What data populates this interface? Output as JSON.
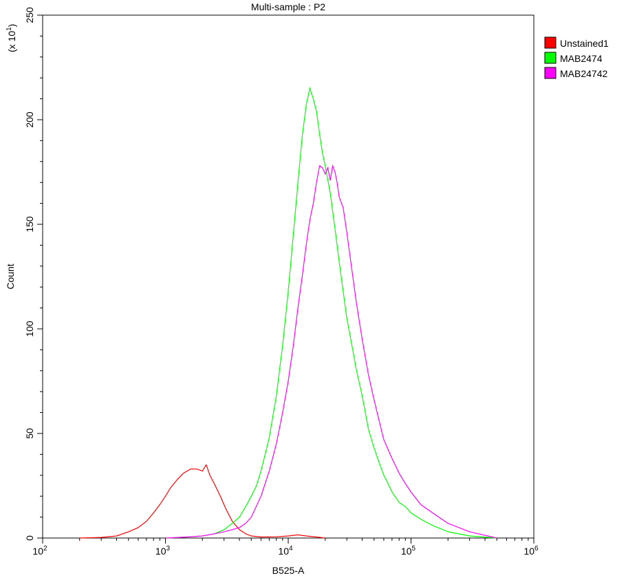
{
  "chart_data": {
    "type": "line",
    "title": "Multi-sample : P2",
    "xlabel": "B525-A",
    "ylabel": "Count",
    "y_multiplier_label": "(x 10",
    "y_multiplier_exp": "1",
    "y_multiplier_close": ")",
    "x_scale": "log",
    "xlim": [
      100,
      1000000
    ],
    "ylim": [
      0,
      250
    ],
    "x_ticks": [
      {
        "value": 100,
        "base": "10",
        "exp": "2"
      },
      {
        "value": 1000,
        "base": "10",
        "exp": "3"
      },
      {
        "value": 10000,
        "base": "10",
        "exp": "4"
      },
      {
        "value": 100000,
        "base": "10",
        "exp": "5"
      },
      {
        "value": 1000000,
        "base": "10",
        "exp": "6"
      }
    ],
    "y_ticks": [
      "0",
      "50",
      "100",
      "150",
      "200",
      "250"
    ],
    "grid": false,
    "legend_position": "top-right",
    "series": [
      {
        "name": "Unstained1",
        "color": "#ff0000",
        "points": [
          [
            200,
            0
          ],
          [
            300,
            0.3
          ],
          [
            400,
            1
          ],
          [
            500,
            3
          ],
          [
            600,
            5
          ],
          [
            700,
            8
          ],
          [
            800,
            12
          ],
          [
            900,
            16
          ],
          [
            1000,
            20
          ],
          [
            1100,
            24
          ],
          [
            1250,
            28
          ],
          [
            1400,
            31
          ],
          [
            1600,
            33
          ],
          [
            1800,
            33
          ],
          [
            2000,
            32
          ],
          [
            2150,
            35
          ],
          [
            2300,
            30
          ],
          [
            2500,
            26
          ],
          [
            2800,
            20
          ],
          [
            3100,
            14
          ],
          [
            3500,
            8
          ],
          [
            4000,
            4
          ],
          [
            4500,
            2
          ],
          [
            5000,
            1
          ],
          [
            6000,
            0.5
          ],
          [
            8000,
            0.6
          ],
          [
            10000,
            1
          ],
          [
            12000,
            1.5
          ],
          [
            14000,
            1
          ],
          [
            17000,
            0.5
          ],
          [
            20000,
            0
          ]
        ]
      },
      {
        "name": "MAB2474",
        "color": "#00ff00",
        "points": [
          [
            1000,
            0
          ],
          [
            1500,
            0.5
          ],
          [
            2000,
            1
          ],
          [
            2500,
            2
          ],
          [
            3000,
            4
          ],
          [
            3500,
            7
          ],
          [
            4000,
            10
          ],
          [
            4500,
            15
          ],
          [
            5000,
            20
          ],
          [
            5500,
            25
          ],
          [
            6000,
            32
          ],
          [
            7000,
            48
          ],
          [
            8000,
            68
          ],
          [
            9000,
            92
          ],
          [
            10000,
            118
          ],
          [
            11000,
            145
          ],
          [
            12000,
            170
          ],
          [
            13000,
            192
          ],
          [
            14000,
            207
          ],
          [
            15000,
            215
          ],
          [
            16000,
            210
          ],
          [
            17000,
            204
          ],
          [
            18000,
            193
          ],
          [
            19000,
            184
          ],
          [
            20000,
            178
          ],
          [
            22000,
            165
          ],
          [
            24000,
            148
          ],
          [
            26000,
            132
          ],
          [
            28000,
            118
          ],
          [
            30000,
            105
          ],
          [
            33000,
            92
          ],
          [
            36000,
            80
          ],
          [
            40000,
            68
          ],
          [
            45000,
            52
          ],
          [
            50000,
            43
          ],
          [
            55000,
            36
          ],
          [
            60000,
            30
          ],
          [
            65000,
            26
          ],
          [
            70000,
            22
          ],
          [
            80000,
            17
          ],
          [
            90000,
            15
          ],
          [
            100000,
            12
          ],
          [
            120000,
            9
          ],
          [
            150000,
            6
          ],
          [
            200000,
            3
          ],
          [
            300000,
            1
          ],
          [
            500000,
            0
          ]
        ]
      },
      {
        "name": "MAB24742",
        "color": "#ff00ff",
        "points": [
          [
            1000,
            0
          ],
          [
            1500,
            0.5
          ],
          [
            2000,
            1
          ],
          [
            2500,
            2
          ],
          [
            3000,
            3
          ],
          [
            3500,
            4
          ],
          [
            4000,
            5
          ],
          [
            4500,
            7
          ],
          [
            5000,
            10
          ],
          [
            6000,
            20
          ],
          [
            7000,
            32
          ],
          [
            8000,
            45
          ],
          [
            9000,
            60
          ],
          [
            10000,
            75
          ],
          [
            11000,
            92
          ],
          [
            12000,
            110
          ],
          [
            13000,
            125
          ],
          [
            14000,
            140
          ],
          [
            15000,
            152
          ],
          [
            16000,
            160
          ],
          [
            17000,
            170
          ],
          [
            18000,
            178
          ],
          [
            19000,
            177
          ],
          [
            20000,
            174
          ],
          [
            21000,
            177
          ],
          [
            22000,
            171
          ],
          [
            23000,
            178
          ],
          [
            24000,
            175
          ],
          [
            25000,
            170
          ],
          [
            26000,
            163
          ],
          [
            28000,
            158
          ],
          [
            30000,
            146
          ],
          [
            33000,
            128
          ],
          [
            36000,
            112
          ],
          [
            40000,
            95
          ],
          [
            45000,
            78
          ],
          [
            50000,
            66
          ],
          [
            55000,
            56
          ],
          [
            60000,
            47
          ],
          [
            70000,
            38
          ],
          [
            80000,
            31
          ],
          [
            90000,
            26
          ],
          [
            100000,
            22
          ],
          [
            120000,
            16
          ],
          [
            150000,
            12
          ],
          [
            200000,
            7
          ],
          [
            300000,
            3
          ],
          [
            500000,
            0
          ]
        ]
      }
    ]
  }
}
